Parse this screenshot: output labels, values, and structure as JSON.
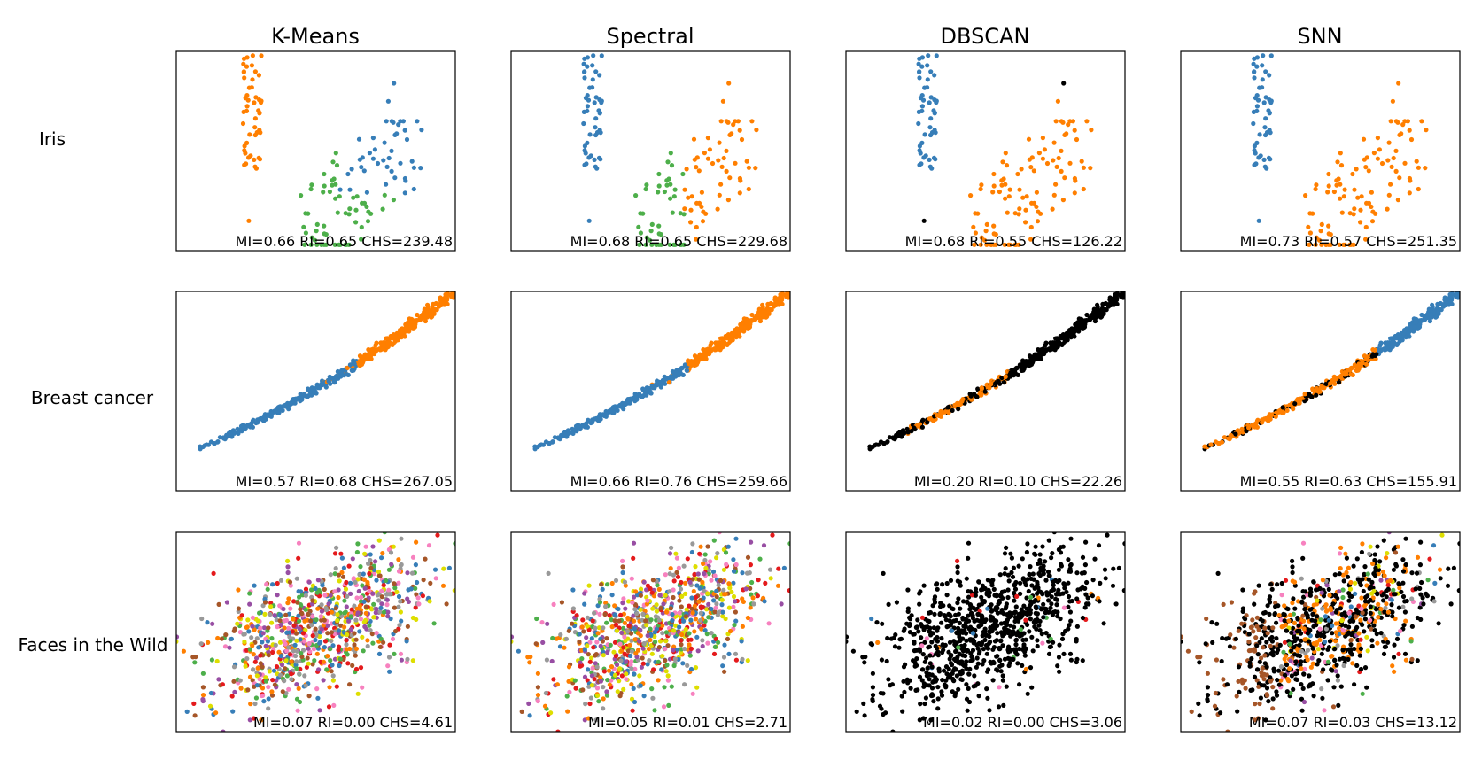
{
  "chart_data": {
    "type": "scatter",
    "title": "",
    "methods": [
      "K-Means",
      "Spectral",
      "DBSCAN",
      "SNN"
    ],
    "datasets": [
      "Iris",
      "Breast cancer",
      "Faces in the Wild"
    ],
    "colors": {
      "blue": "#377eb8",
      "orange": "#ff7f00",
      "green": "#4daf4a",
      "red": "#e41a1c",
      "pink": "#f781bf",
      "gray": "#999999",
      "brown": "#a65628",
      "yellow": "#dede00",
      "purple": "#984ea3",
      "noise": "#000000"
    },
    "panels": [
      {
        "dataset": "Iris",
        "method": "K-Means",
        "metrics": "MI=0.66 RI=0.65 CHS=239.48"
      },
      {
        "dataset": "Iris",
        "method": "Spectral",
        "metrics": "MI=0.68 RI=0.65 CHS=229.68"
      },
      {
        "dataset": "Iris",
        "method": "DBSCAN",
        "metrics": "MI=0.68 RI=0.55 CHS=126.22"
      },
      {
        "dataset": "Iris",
        "method": "SNN",
        "metrics": "MI=0.73 RI=0.57 CHS=251.35"
      },
      {
        "dataset": "Breast cancer",
        "method": "K-Means",
        "metrics": "MI=0.57 RI=0.68 CHS=267.05"
      },
      {
        "dataset": "Breast cancer",
        "method": "Spectral",
        "metrics": "MI=0.66 RI=0.76 CHS=259.66"
      },
      {
        "dataset": "Breast cancer",
        "method": "DBSCAN",
        "metrics": "MI=0.20 RI=0.10 CHS=22.26"
      },
      {
        "dataset": "Breast cancer",
        "method": "SNN",
        "metrics": "MI=0.55 RI=0.63 CHS=155.91"
      },
      {
        "dataset": "Faces in the Wild",
        "method": "K-Means",
        "metrics": "MI=0.07 RI=0.00 CHS=4.61"
      },
      {
        "dataset": "Faces in the Wild",
        "method": "Spectral",
        "metrics": "MI=0.05 RI=0.01 CHS=2.71"
      },
      {
        "dataset": "Faces in the Wild",
        "method": "DBSCAN",
        "metrics": "MI=0.02 RI=0.00 CHS=3.06"
      },
      {
        "dataset": "Faces in the Wild",
        "method": "SNN",
        "metrics": "MI=0.07 RI=0.03 CHS=13.12"
      }
    ]
  }
}
